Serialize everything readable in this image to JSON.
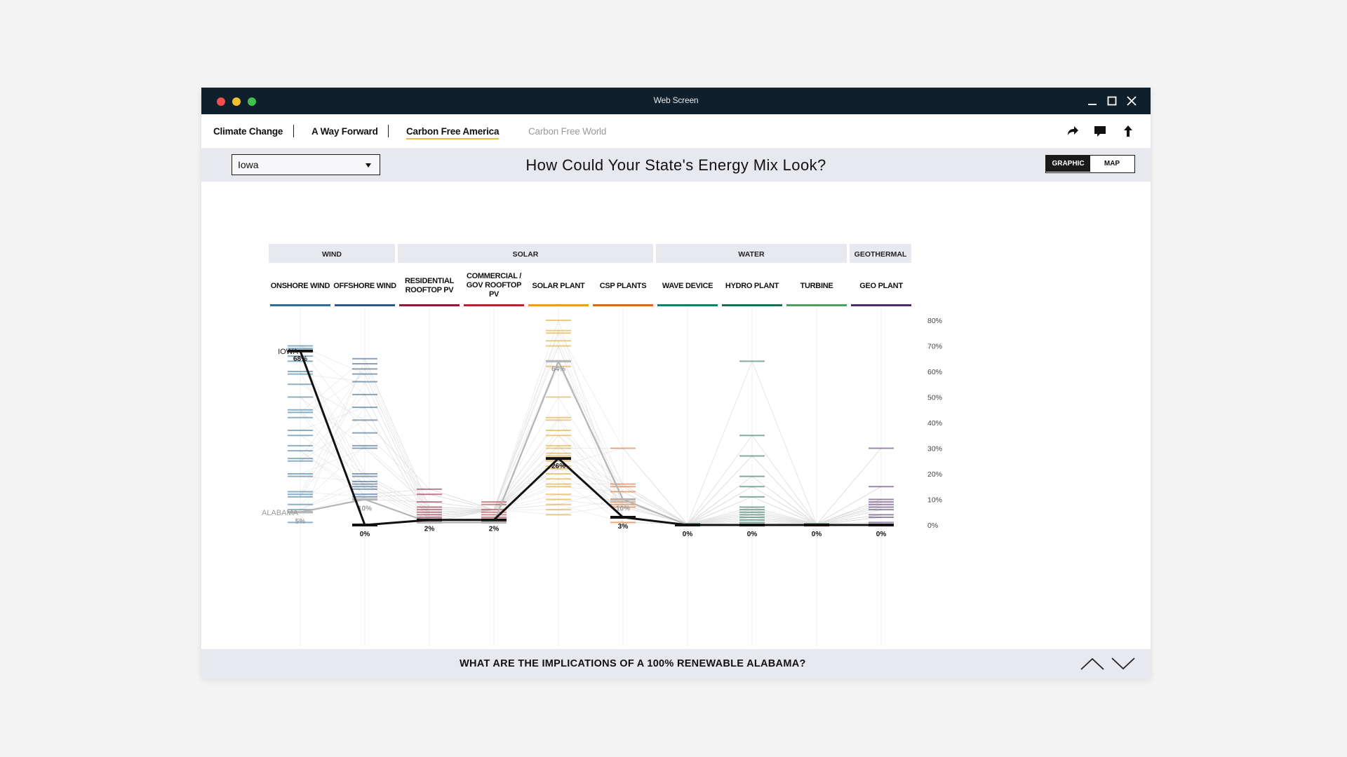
{
  "window": {
    "title": "Web Screen"
  },
  "nav": {
    "items": [
      "Climate Change",
      "A Way Forward",
      "Carbon Free America",
      "Carbon Free World"
    ],
    "active": "Carbon Free America",
    "icons": [
      "share-icon",
      "comment-icon",
      "upload-icon"
    ]
  },
  "controls": {
    "state_selected": "Iowa",
    "title": "How Could Your State's Energy Mix Look?",
    "view_toggle": [
      "GRAPHIC",
      "MAP"
    ],
    "view_selected": "GRAPHIC"
  },
  "chart_data": {
    "type": "parallel-coordinates",
    "groups": [
      {
        "name": "WIND",
        "columns": 2
      },
      {
        "name": "SOLAR",
        "columns": 4
      },
      {
        "name": "WATER",
        "columns": 3
      },
      {
        "name": "GEOTHERMAL",
        "columns": 1
      }
    ],
    "columns": [
      "ONSHORE WIND",
      "OFFSHORE WIND",
      "RESIDENTIAL ROOFTOP PV",
      "COMMERCIAL / GOV ROOFTOP PV",
      "SOLAR PLANT",
      "CSP PLANTS",
      "WAVE DEVICE",
      "HYDRO PLANT",
      "TURBINE",
      "GEO PLANT"
    ],
    "column_colors": [
      "#2f6f94",
      "#2c5783",
      "#8a1d38",
      "#b1262c",
      "#e0a125",
      "#d4691f",
      "#1e7a62",
      "#1f6b4d",
      "#4f9e61",
      "#4b2a66"
    ],
    "y_axis": {
      "ticks": [
        "80%",
        "70%",
        "60%",
        "50%",
        "40%",
        "30%",
        "20%",
        "10%",
        "0%"
      ],
      "min": 0,
      "max": 80
    },
    "series": [
      {
        "name": "IOWA",
        "values": [
          68,
          0,
          2,
          2,
          26,
          3,
          0,
          0,
          0,
          0
        ],
        "labels": [
          "68%",
          "0%",
          "2%",
          "2%",
          "26%",
          "3%",
          "0%",
          "0%",
          "0%",
          "0%"
        ]
      },
      {
        "name": "ALABAMA",
        "values": [
          5,
          10,
          1,
          1,
          64,
          10,
          0,
          0,
          0,
          0
        ],
        "labels": [
          "5%",
          "10%",
          "",
          "",
          "64%",
          "10%",
          "",
          "",
          "",
          ""
        ]
      }
    ],
    "state_ticks": [
      [
        70,
        69,
        66,
        64,
        60,
        59,
        55,
        50,
        45,
        44,
        42,
        37,
        35,
        31,
        29,
        26,
        25,
        20,
        19,
        13,
        12,
        11,
        8,
        6,
        5,
        1
      ],
      [
        65,
        63,
        61,
        59,
        56,
        51,
        46,
        41,
        36,
        31,
        30,
        20,
        19,
        17,
        16,
        15,
        14,
        12,
        11,
        10
      ],
      [
        14,
        12,
        9,
        7,
        6,
        5,
        4,
        3,
        2,
        1
      ],
      [
        9,
        8,
        6,
        5,
        4,
        3,
        2
      ],
      [
        80,
        76,
        75,
        72,
        70,
        64,
        62,
        50,
        42,
        41,
        37,
        35,
        31,
        30,
        28,
        27,
        26,
        25,
        23,
        22,
        20,
        18,
        16,
        15,
        12,
        10,
        8,
        6,
        4
      ],
      [
        30,
        16,
        15,
        13,
        10,
        9,
        8,
        7,
        3,
        1
      ],
      [
        0.5,
        0.2
      ],
      [
        64,
        35,
        27,
        19,
        15,
        11,
        7,
        6,
        5,
        4,
        3,
        2,
        1
      ],
      [
        0.5,
        0.2
      ],
      [
        30,
        15,
        10,
        9,
        8,
        7,
        6,
        4,
        3,
        1
      ]
    ]
  },
  "footer": {
    "question": "WHAT ARE THE IMPLICATIONS OF A 100% RENEWABLE ALABAMA?"
  }
}
